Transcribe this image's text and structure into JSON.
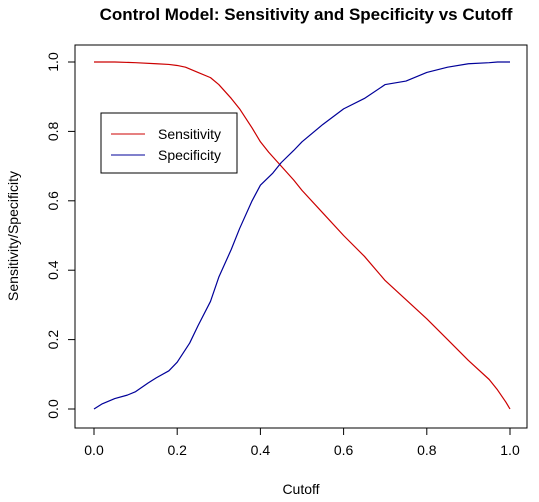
{
  "chart_data": {
    "type": "line",
    "title": "Control Model: Sensitivity and Specificity vs Cutoff",
    "xlabel": "Cutoff",
    "ylabel": "Sensitivity/Specificity",
    "xlim": [
      0,
      1
    ],
    "ylim": [
      0,
      1
    ],
    "x_ticks": [
      "0.0",
      "0.2",
      "0.4",
      "0.6",
      "0.8",
      "1.0"
    ],
    "y_ticks": [
      "0.0",
      "0.2",
      "0.4",
      "0.6",
      "0.8",
      "1.0"
    ],
    "grid": false,
    "legend_position": "top-left",
    "series": [
      {
        "name": "Sensitivity",
        "color": "#cc0000",
        "x": [
          0.0,
          0.05,
          0.1,
          0.15,
          0.18,
          0.2,
          0.22,
          0.25,
          0.28,
          0.3,
          0.33,
          0.35,
          0.38,
          0.4,
          0.42,
          0.45,
          0.48,
          0.5,
          0.55,
          0.6,
          0.65,
          0.7,
          0.75,
          0.8,
          0.85,
          0.9,
          0.95,
          0.97,
          0.99,
          1.0
        ],
        "y": [
          1.0,
          1.0,
          0.998,
          0.995,
          0.993,
          0.99,
          0.985,
          0.97,
          0.955,
          0.935,
          0.895,
          0.865,
          0.81,
          0.77,
          0.74,
          0.7,
          0.66,
          0.63,
          0.565,
          0.5,
          0.44,
          0.37,
          0.315,
          0.26,
          0.2,
          0.14,
          0.085,
          0.055,
          0.02,
          0.0
        ]
      },
      {
        "name": "Specificity",
        "color": "#000099",
        "x": [
          0.0,
          0.02,
          0.05,
          0.08,
          0.1,
          0.13,
          0.15,
          0.18,
          0.2,
          0.23,
          0.25,
          0.28,
          0.3,
          0.33,
          0.35,
          0.38,
          0.4,
          0.43,
          0.45,
          0.48,
          0.5,
          0.55,
          0.6,
          0.65,
          0.7,
          0.75,
          0.8,
          0.85,
          0.9,
          0.95,
          0.97,
          1.0
        ],
        "y": [
          0.0,
          0.015,
          0.03,
          0.04,
          0.05,
          0.075,
          0.09,
          0.11,
          0.135,
          0.19,
          0.24,
          0.31,
          0.38,
          0.46,
          0.52,
          0.6,
          0.645,
          0.68,
          0.71,
          0.745,
          0.77,
          0.82,
          0.865,
          0.895,
          0.935,
          0.945,
          0.97,
          0.985,
          0.995,
          0.998,
          1.0,
          1.0
        ]
      }
    ]
  }
}
